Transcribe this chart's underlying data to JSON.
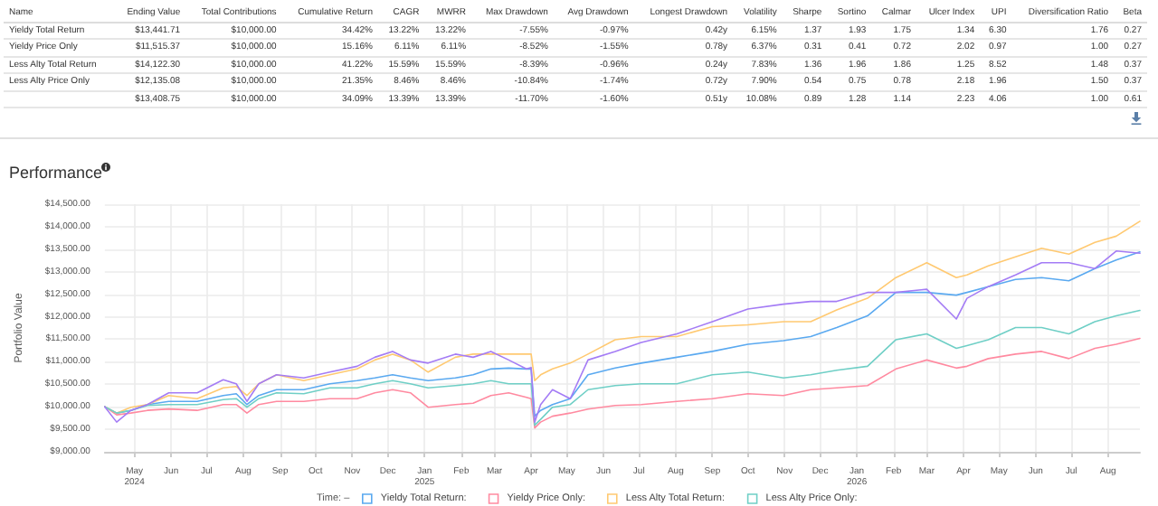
{
  "chart_data": [
    {
      "type": "other",
      "categories": [
        "Name",
        "Ending Value",
        "Total Contributions",
        "Cumulative Return",
        "CAGR",
        "MWRR",
        "Max Drawdown",
        "Avg Drawdown",
        "Longest Drawdown",
        "Volatility",
        "Sharpe",
        "Sortino",
        "Calmar",
        "Ulcer Index",
        "UPI",
        "Diversification Ratio",
        "Beta"
      ],
      "cell_labels": [
        [
          "Yieldy Total Return",
          "$13,441.71",
          "$10,000.00",
          "34.42%",
          "13.22%",
          "13.22%",
          "-7.55%",
          "-0.97%",
          "0.42y",
          "6.15%",
          "1.37",
          "1.93",
          "1.75",
          "1.34",
          "6.30",
          "1.76",
          "0.27"
        ],
        [
          "Yieldy Price Only",
          "$11,515.37",
          "$10,000.00",
          "15.16%",
          "6.11%",
          "6.11%",
          "-8.52%",
          "-1.55%",
          "0.78y",
          "6.37%",
          "0.31",
          "0.41",
          "0.72",
          "2.02",
          "0.97",
          "1.00",
          "0.27"
        ],
        [
          "Less Alty Total Return",
          "$14,122.30",
          "$10,000.00",
          "41.22%",
          "15.59%",
          "15.59%",
          "-8.39%",
          "-0.96%",
          "0.24y",
          "7.83%",
          "1.36",
          "1.96",
          "1.86",
          "1.25",
          "8.52",
          "1.48",
          "0.37"
        ],
        [
          "Less Alty Price Only",
          "$12,135.08",
          "$10,000.00",
          "21.35%",
          "8.46%",
          "8.46%",
          "-10.84%",
          "-1.74%",
          "0.72y",
          "7.90%",
          "0.54",
          "0.75",
          "0.78",
          "2.18",
          "1.96",
          "1.50",
          "0.37"
        ],
        [
          null,
          "$13,408.75",
          "$10,000.00",
          "34.09%",
          "13.39%",
          "13.39%",
          "-11.70%",
          "-1.60%",
          "0.51y",
          "10.08%",
          "0.89",
          "1.28",
          "1.14",
          "2.23",
          "4.06",
          "1.00",
          "0.61"
        ]
      ]
    },
    {
      "type": "line",
      "title": "Performance",
      "ylabel": "Portfolio Value",
      "legend_title": "Time: –",
      "legend": "bottom",
      "grid": true,
      "marker": "none",
      "line_style": "solid",
      "x": [
        "2024-04-06",
        "2024-04-16",
        "2024-04-28",
        "2024-05-12",
        "2024-05-30",
        "2024-06-23",
        "2024-07-15",
        "2024-07-26",
        "2024-08-04",
        "2024-08-14",
        "2024-08-29",
        "2024-09-21",
        "2024-10-13",
        "2024-11-05",
        "2024-11-20",
        "2024-12-05",
        "2024-12-20",
        "2025-01-04",
        "2025-01-27",
        "2025-02-11",
        "2025-02-26",
        "2025-03-13",
        "2025-03-28",
        "2025-04-01",
        "2025-04-04",
        "2025-04-09",
        "2025-04-19",
        "2025-05-04",
        "2025-05-19",
        "2025-06-11",
        "2025-07-03",
        "2025-08-02",
        "2025-09-01",
        "2025-10-01",
        "2025-10-31",
        "2025-11-23",
        "2025-12-15",
        "2026-01-10",
        "2026-02-03",
        "2026-03-01",
        "2026-03-26",
        "2026-04-04",
        "2026-04-22",
        "2026-05-15",
        "2026-06-06",
        "2026-06-29",
        "2026-07-21",
        "2026-08-08",
        "2026-08-28"
      ],
      "xlim": [
        "2024-04-06",
        "2026-08-28"
      ],
      "xticks": [
        {
          "value": "2024-05-01",
          "label": "May\n2024"
        },
        {
          "value": "2024-06-01",
          "label": "Jun"
        },
        {
          "value": "2024-07-01",
          "label": "Jul"
        },
        {
          "value": "2024-08-01",
          "label": "Aug"
        },
        {
          "value": "2024-09-01",
          "label": "Sep"
        },
        {
          "value": "2024-10-01",
          "label": "Oct"
        },
        {
          "value": "2024-11-01",
          "label": "Nov"
        },
        {
          "value": "2024-12-01",
          "label": "Dec"
        },
        {
          "value": "2025-01-01",
          "label": "Jan\n2025"
        },
        {
          "value": "2025-02-01",
          "label": "Feb"
        },
        {
          "value": "2025-03-01",
          "label": "Mar"
        },
        {
          "value": "2025-04-01",
          "label": "Apr"
        },
        {
          "value": "2025-05-01",
          "label": "May"
        },
        {
          "value": "2025-06-01",
          "label": "Jun"
        },
        {
          "value": "2025-07-01",
          "label": "Jul"
        },
        {
          "value": "2025-08-01",
          "label": "Aug"
        },
        {
          "value": "2025-09-01",
          "label": "Sep"
        },
        {
          "value": "2025-10-01",
          "label": "Oct"
        },
        {
          "value": "2025-11-01",
          "label": "Nov"
        },
        {
          "value": "2025-12-01",
          "label": "Dec"
        },
        {
          "value": "2026-01-01",
          "label": "Jan\n2026"
        },
        {
          "value": "2026-02-01",
          "label": "Feb"
        },
        {
          "value": "2026-03-01",
          "label": "Mar"
        },
        {
          "value": "2026-04-01",
          "label": "Apr"
        },
        {
          "value": "2026-05-01",
          "label": "May"
        },
        {
          "value": "2026-06-01",
          "label": "Jun"
        },
        {
          "value": "2026-07-01",
          "label": "Jul"
        },
        {
          "value": "2026-08-01",
          "label": "Aug"
        }
      ],
      "ylim": [
        9000,
        14500
      ],
      "yticks": [
        {
          "value": 9000,
          "label": "$9,000.00"
        },
        {
          "value": 9500,
          "label": "$9,500.00"
        },
        {
          "value": 10000,
          "label": "$10,000.00"
        },
        {
          "value": 10500,
          "label": "$10,500.00"
        },
        {
          "value": 11000,
          "label": "$11,000.00"
        },
        {
          "value": 11500,
          "label": "$11,500.00"
        },
        {
          "value": 12000,
          "label": "$12,000.00"
        },
        {
          "value": 12500,
          "label": "$12,500.00"
        },
        {
          "value": 13000,
          "label": "$13,000.00"
        },
        {
          "value": 13500,
          "label": "$13,500.00"
        },
        {
          "value": 14000,
          "label": "$14,000.00"
        },
        {
          "value": 14500,
          "label": "$14,500.00"
        }
      ],
      "series": [
        {
          "name": "Yieldy Total Return:",
          "color": "#5aa9f0",
          "values": [
            10000,
            9860,
            9920,
            10050,
            10120,
            10120,
            10250,
            10290,
            10050,
            10250,
            10380,
            10380,
            10510,
            10580,
            10640,
            10710,
            10640,
            10580,
            10640,
            10710,
            10840,
            10860,
            10840,
            10840,
            9790,
            9920,
            10050,
            10180,
            10710,
            10860,
            10970,
            11100,
            11230,
            11390,
            11470,
            11560,
            11760,
            12020,
            12540,
            12540,
            12480,
            12540,
            12670,
            12830,
            12870,
            12800,
            13070,
            13260,
            13440
          ]
        },
        {
          "name": "Yieldy Price Only:",
          "color": "#ff8aa0",
          "values": [
            10000,
            9820,
            9860,
            9920,
            9950,
            9920,
            10050,
            10050,
            9860,
            10050,
            10120,
            10120,
            10180,
            10180,
            10310,
            10380,
            10310,
            9990,
            10050,
            10080,
            10250,
            10310,
            10210,
            10180,
            9530,
            9660,
            9790,
            9860,
            9950,
            10030,
            10050,
            10120,
            10180,
            10290,
            10250,
            10380,
            10420,
            10470,
            10840,
            11040,
            10860,
            10900,
            11070,
            11170,
            11230,
            11070,
            11300,
            11390,
            11520
          ]
        },
        {
          "name": "Less Alty Total Return:",
          "color": "#ffc971",
          "values": [
            10000,
            9860,
            9990,
            10050,
            10250,
            10180,
            10420,
            10450,
            10250,
            10510,
            10710,
            10580,
            10710,
            10840,
            11040,
            11170,
            11040,
            10770,
            11100,
            11170,
            11170,
            11170,
            11170,
            11170,
            10580,
            10710,
            10840,
            10970,
            11170,
            11490,
            11560,
            11560,
            11780,
            11820,
            11890,
            11890,
            12150,
            12410,
            12870,
            13200,
            12870,
            12930,
            13130,
            13330,
            13520,
            13390,
            13650,
            13790,
            14120
          ]
        },
        {
          "name": "Less Alty Price Only:",
          "color": "#6fcfc6",
          "values": [
            10000,
            9860,
            9920,
            10030,
            10050,
            10050,
            10160,
            10180,
            9990,
            10180,
            10310,
            10290,
            10420,
            10420,
            10510,
            10580,
            10510,
            10420,
            10470,
            10510,
            10580,
            10510,
            10510,
            10510,
            9590,
            9720,
            9990,
            10050,
            10380,
            10470,
            10510,
            10510,
            10710,
            10770,
            10640,
            10710,
            10810,
            10900,
            11490,
            11620,
            11300,
            11360,
            11490,
            11760,
            11760,
            11620,
            11890,
            12020,
            12140
          ]
        },
        {
          "color": "#a47cf5",
          "values": [
            10000,
            9660,
            9920,
            10050,
            10310,
            10310,
            10600,
            10510,
            10120,
            10510,
            10710,
            10640,
            10770,
            10900,
            11100,
            11230,
            11040,
            10970,
            11170,
            11100,
            11230,
            11040,
            10840,
            10870,
            9660,
            10050,
            10380,
            10180,
            11040,
            11230,
            11430,
            11620,
            11890,
            12170,
            12280,
            12340,
            12340,
            12540,
            12540,
            12610,
            11950,
            12410,
            12670,
            12930,
            13200,
            13200,
            13070,
            13460,
            13410
          ]
        }
      ]
    }
  ]
}
